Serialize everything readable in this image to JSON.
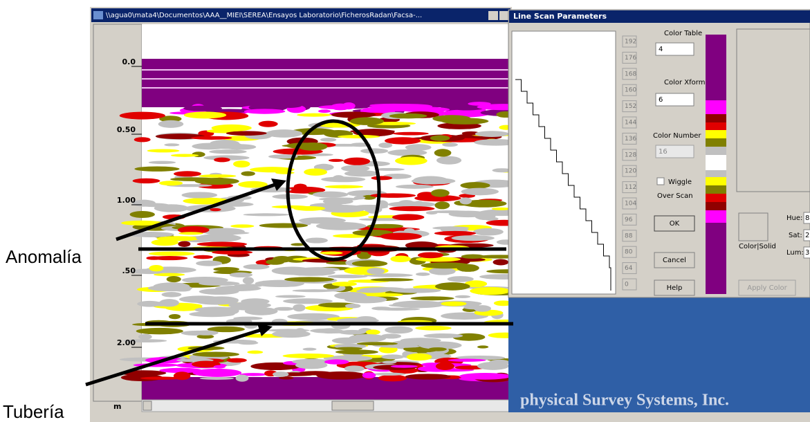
{
  "window": {
    "title": "\\\\agua0\\mata4\\Documentos\\AAA__MIEI\\SEREA\\Ensayos Laboratorio\\FicherosRadan\\Facsa-..."
  },
  "ruler": {
    "labels": [
      "0.0",
      "0.50",
      "1.00",
      ".50",
      "2.00"
    ],
    "unit": "m"
  },
  "dialog": {
    "title": "Line Scan Parameters",
    "scale": [
      192,
      176,
      168,
      160,
      152,
      144,
      136,
      128,
      120,
      112,
      104,
      96,
      88,
      80,
      64,
      0
    ],
    "color_table_label": "Color Table",
    "color_table_value": "4",
    "color_xform_label": "Color Xform",
    "color_xform_value": "6",
    "color_number_label": "Color Number",
    "color_number_value": "16",
    "wiggle": "Wiggle",
    "over_scan": "Over Scan",
    "ok": "OK",
    "cancel": "Cancel",
    "help": "Help",
    "color_solid": "Color|Solid",
    "apply_color": "Apply Color",
    "hue": "Hue:",
    "sat": "Sat:",
    "lum": "Lum:",
    "hue_value": "8",
    "sat_value": "2",
    "lum_value": "3"
  },
  "background": {
    "company": "physical Survey Systems, Inc."
  },
  "annotations": {
    "anomaly": "Anomalía",
    "pipe": "Tubería"
  }
}
